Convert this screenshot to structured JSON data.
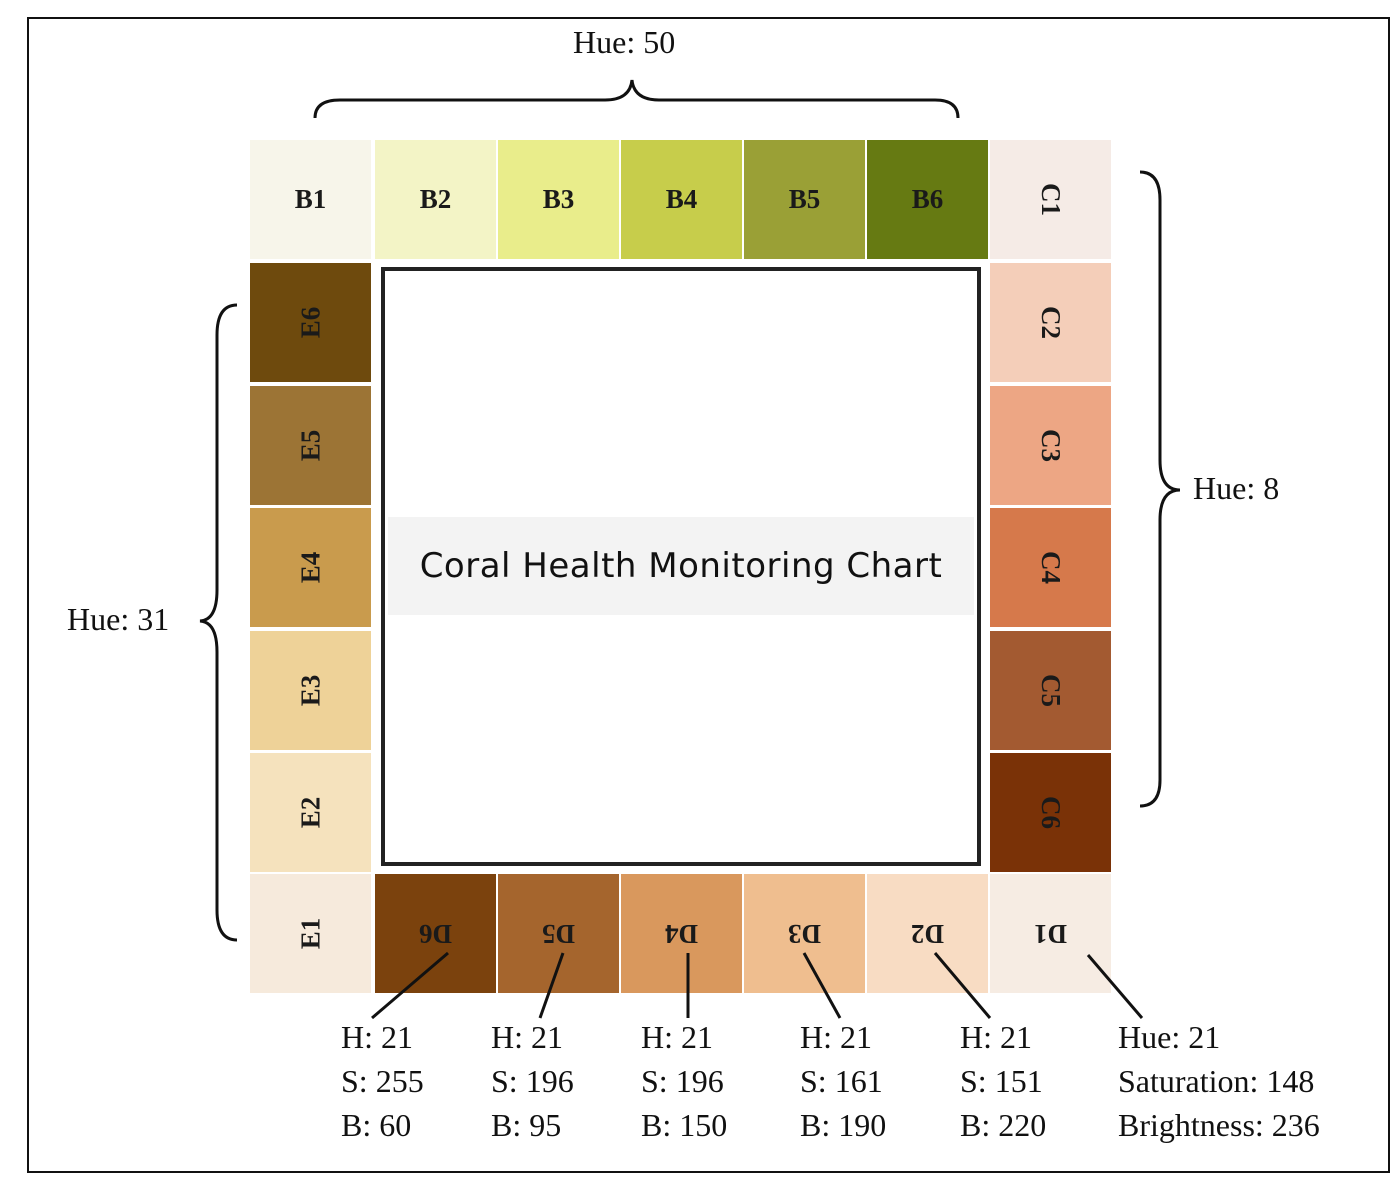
{
  "title": "Coral Health Monitoring Chart",
  "hue_labels": {
    "top": "Hue: 50",
    "right": "Hue: 8",
    "left": "Hue: 31"
  },
  "tiles": {
    "B": [
      {
        "label": "B1",
        "color": "#f7f5ea"
      },
      {
        "label": "B2",
        "color": "#f3f4c6"
      },
      {
        "label": "B3",
        "color": "#e9ed8b"
      },
      {
        "label": "B4",
        "color": "#c7cd4b"
      },
      {
        "label": "B5",
        "color": "#9aa036"
      },
      {
        "label": "B6",
        "color": "#667a12"
      }
    ],
    "C": [
      {
        "label": "C1",
        "color": "#f5ebe6"
      },
      {
        "label": "C2",
        "color": "#f4ceb9"
      },
      {
        "label": "C3",
        "color": "#eda684"
      },
      {
        "label": "C4",
        "color": "#d6794b"
      },
      {
        "label": "C5",
        "color": "#a35a31"
      },
      {
        "label": "C6",
        "color": "#7a3207"
      }
    ],
    "D": [
      {
        "label": "D1",
        "color": "#f6ece3"
      },
      {
        "label": "D2",
        "color": "#f8dcc3"
      },
      {
        "label": "D3",
        "color": "#efbe8f"
      },
      {
        "label": "D4",
        "color": "#d9985d"
      },
      {
        "label": "D5",
        "color": "#a5652d"
      },
      {
        "label": "D6",
        "color": "#7b420d"
      }
    ],
    "E": [
      {
        "label": "E1",
        "color": "#f6eadc"
      },
      {
        "label": "E2",
        "color": "#f5e2bd"
      },
      {
        "label": "E3",
        "color": "#eed298"
      },
      {
        "label": "E4",
        "color": "#c99b4d"
      },
      {
        "label": "E5",
        "color": "#9c7435"
      },
      {
        "label": "E6",
        "color": "#6e4a0d"
      }
    ]
  },
  "hsb_values": [
    {
      "tile": "D6",
      "lines": [
        "H: 21",
        "S: 255",
        "B: 60"
      ]
    },
    {
      "tile": "D5",
      "lines": [
        "H: 21",
        "S: 196",
        "B: 95"
      ]
    },
    {
      "tile": "D4",
      "lines": [
        "H: 21",
        "S: 196",
        "B: 150"
      ]
    },
    {
      "tile": "D3",
      "lines": [
        "H: 21",
        "S: 161",
        "B: 190"
      ]
    },
    {
      "tile": "D2",
      "lines": [
        "H: 21",
        "S: 151",
        "B: 220"
      ]
    },
    {
      "tile": "D1",
      "lines": [
        "Hue: 21",
        "Saturation: 148",
        "Brightness: 236"
      ]
    }
  ]
}
